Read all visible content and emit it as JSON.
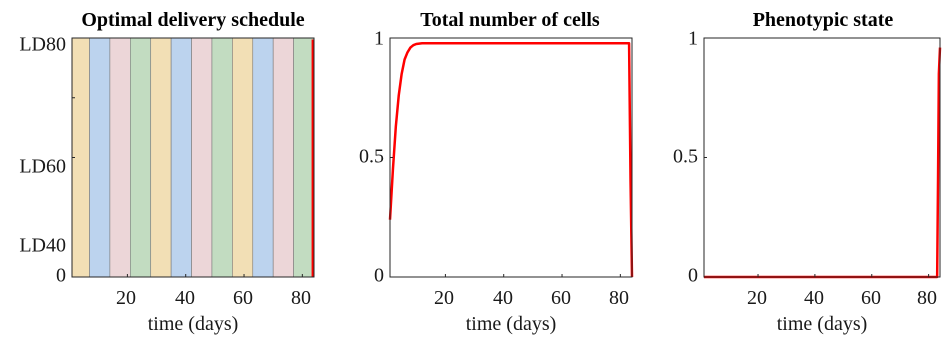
{
  "colors": {
    "series": "#ff0000",
    "band_tan": "#f2dfb5",
    "band_blue": "#bcd3ee",
    "band_pink": "#ecd6d8",
    "band_green": "#c2dcc1",
    "axis": "#262626"
  },
  "chart_data": [
    {
      "type": "area",
      "title": "Optimal delivery schedule",
      "xlabel": "time (days)",
      "ylabel": "",
      "xlim": [
        1,
        84
      ],
      "ylim": [
        0,
        80
      ],
      "xticks": [
        20,
        40,
        60,
        80
      ],
      "x_tick_labels": [
        "20",
        "40",
        "60",
        "80"
      ],
      "yticks": [
        0,
        40,
        60,
        80
      ],
      "y_tick_labels": [
        "0",
        "LD40",
        "LD60",
        "LD80"
      ],
      "bands": [
        {
          "x0": 1,
          "x1": 7,
          "color": "band_tan"
        },
        {
          "x0": 7,
          "x1": 14,
          "color": "band_blue"
        },
        {
          "x0": 14,
          "x1": 21,
          "color": "band_pink"
        },
        {
          "x0": 21,
          "x1": 28,
          "color": "band_green"
        },
        {
          "x0": 28,
          "x1": 35,
          "color": "band_tan"
        },
        {
          "x0": 35,
          "x1": 42,
          "color": "band_blue"
        },
        {
          "x0": 42,
          "x1": 49,
          "color": "band_pink"
        },
        {
          "x0": 49,
          "x1": 56,
          "color": "band_green"
        },
        {
          "x0": 56,
          "x1": 63,
          "color": "band_tan"
        },
        {
          "x0": 63,
          "x1": 70,
          "color": "band_blue"
        },
        {
          "x0": 70,
          "x1": 77,
          "color": "band_pink"
        },
        {
          "x0": 77,
          "x1": 84,
          "color": "band_green"
        }
      ],
      "series": [
        {
          "x": [
            83.6,
            83.6
          ],
          "y": [
            0,
            79.5
          ],
          "color": "series"
        }
      ],
      "grid": false
    },
    {
      "type": "line",
      "title": "Total number of cells",
      "xlabel": "time (days)",
      "ylabel": "",
      "xlim": [
        1,
        84
      ],
      "ylim": [
        0,
        1
      ],
      "xticks": [
        20,
        40,
        60,
        80
      ],
      "x_tick_labels": [
        "20",
        "40",
        "60",
        "80"
      ],
      "yticks": [
        0,
        0.5,
        1
      ],
      "y_tick_labels": [
        "0",
        "0.5",
        "1"
      ],
      "series": [
        {
          "x": [
            1,
            2,
            3,
            4,
            5,
            6,
            7,
            8,
            9,
            10,
            12,
            15,
            20,
            40,
            60,
            80,
            83,
            83.5,
            84
          ],
          "y": [
            0.24,
            0.45,
            0.63,
            0.76,
            0.85,
            0.91,
            0.94,
            0.96,
            0.97,
            0.975,
            0.978,
            0.978,
            0.978,
            0.978,
            0.978,
            0.978,
            0.978,
            0.4,
            0.0
          ],
          "color": "series"
        }
      ],
      "grid": false
    },
    {
      "type": "line",
      "title": "Phenotypic state",
      "xlabel": "time (days)",
      "ylabel": "",
      "xlim": [
        1,
        84
      ],
      "ylim": [
        0,
        1
      ],
      "xticks": [
        20,
        40,
        60,
        80
      ],
      "x_tick_labels": [
        "20",
        "40",
        "60",
        "80"
      ],
      "yticks": [
        0,
        0.5,
        1
      ],
      "y_tick_labels": [
        "0",
        "0.5",
        "1"
      ],
      "series": [
        {
          "x": [
            1,
            20,
            40,
            60,
            80,
            83,
            83.3,
            83.6,
            84
          ],
          "y": [
            0,
            0,
            0,
            0,
            0,
            0,
            0.4,
            0.85,
            0.96
          ],
          "color": "series"
        }
      ],
      "grid": false
    }
  ]
}
